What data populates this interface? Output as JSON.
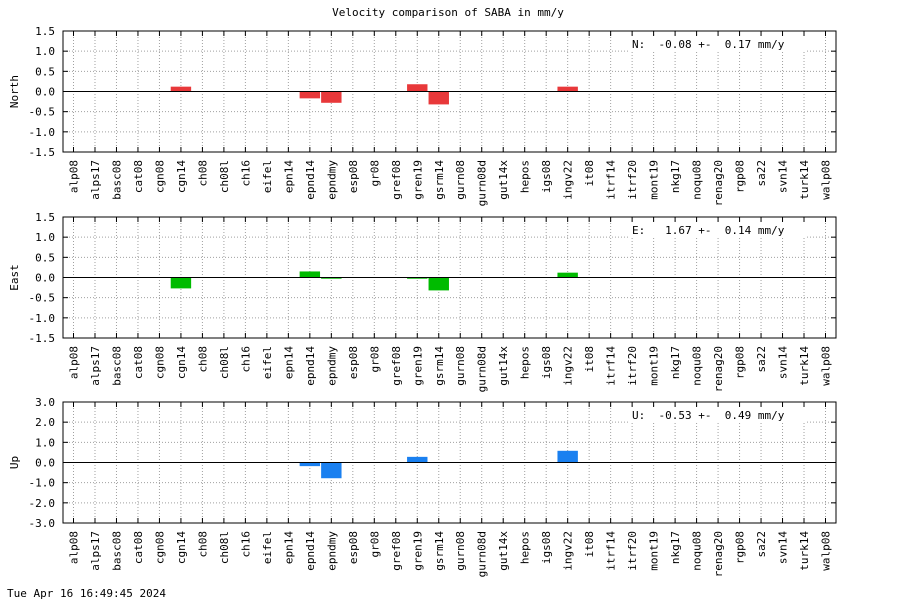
{
  "title": "Velocity comparison of SABA in mm/y",
  "footer": "Tue Apr 16 16:49:45 2024",
  "chart_data": [
    {
      "type": "bar",
      "ylabel": "North",
      "stat": "N:  -0.08 +-  0.17 mm/y",
      "color": "#e8383a",
      "ylim": [
        -1.5,
        1.5
      ],
      "yticks": [
        "1.5",
        "1.0",
        "0.5",
        "0.0",
        "-0.5",
        "-1.0",
        "-1.5"
      ],
      "grid": true,
      "categories": [
        "alp08",
        "alps17",
        "basc08",
        "cat08",
        "cgn08",
        "cgn14",
        "ch08",
        "ch08l",
        "ch16",
        "eifel",
        "epn14",
        "epnd14",
        "epndmy",
        "esp08",
        "gr08",
        "gref08",
        "gren19",
        "gsrm14",
        "gurn08",
        "gurn08d",
        "gut14x",
        "hepos",
        "igs08",
        "ingv22",
        "it08",
        "itrf14",
        "itrf20",
        "mont19",
        "nkg17",
        "noqu08",
        "renag20",
        "rgp08",
        "sa22",
        "svn14",
        "turk14",
        "walp08"
      ],
      "values": [
        0,
        0,
        0,
        0,
        0,
        0.12,
        0,
        0,
        0,
        0,
        0,
        -0.17,
        -0.28,
        0,
        0,
        0,
        0.18,
        -0.32,
        0,
        0,
        0,
        0,
        0,
        0.12,
        0,
        0,
        0,
        0,
        0,
        0,
        0,
        0,
        0,
        0,
        0,
        0
      ]
    },
    {
      "type": "bar",
      "ylabel": "East",
      "stat": "E:   1.67 +-  0.14 mm/y",
      "color": "#00bb00",
      "ylim": [
        -1.5,
        1.5
      ],
      "yticks": [
        "1.5",
        "1.0",
        "0.5",
        "0.0",
        "-0.5",
        "-1.0",
        "-1.5"
      ],
      "grid": true,
      "categories": [
        "alp08",
        "alps17",
        "basc08",
        "cat08",
        "cgn08",
        "cgn14",
        "ch08",
        "ch08l",
        "ch16",
        "eifel",
        "epn14",
        "epnd14",
        "epndmy",
        "esp08",
        "gr08",
        "gref08",
        "gren19",
        "gsrm14",
        "gurn08",
        "gurn08d",
        "gut14x",
        "hepos",
        "igs08",
        "ingv22",
        "it08",
        "itrf14",
        "itrf20",
        "mont19",
        "nkg17",
        "noqu08",
        "renag20",
        "rgp08",
        "sa22",
        "svn14",
        "turk14",
        "walp08"
      ],
      "values": [
        0,
        0,
        0,
        0,
        0,
        -0.27,
        0,
        0,
        0,
        0,
        0,
        0.15,
        -0.03,
        0,
        0,
        0,
        -0.03,
        -0.32,
        0,
        0,
        0,
        0,
        0,
        0.12,
        0,
        0,
        0,
        0,
        0,
        0,
        0,
        0,
        0,
        0,
        0,
        0
      ]
    },
    {
      "type": "bar",
      "ylabel": "Up",
      "stat": "U:  -0.53 +-  0.49 mm/y",
      "color": "#1a80f0",
      "ylim": [
        -3.0,
        3.0
      ],
      "yticks": [
        "3.0",
        "2.0",
        "1.0",
        "0.0",
        "-1.0",
        "-2.0",
        "-3.0"
      ],
      "grid": true,
      "categories": [
        "alp08",
        "alps17",
        "basc08",
        "cat08",
        "cgn08",
        "cgn14",
        "ch08",
        "ch08l",
        "ch16",
        "eifel",
        "epn14",
        "epnd14",
        "epndmy",
        "esp08",
        "gr08",
        "gref08",
        "gren19",
        "gsrm14",
        "gurn08",
        "gurn08d",
        "gut14x",
        "hepos",
        "igs08",
        "ingv22",
        "it08",
        "itrf14",
        "itrf20",
        "mont19",
        "nkg17",
        "noqu08",
        "renag20",
        "rgp08",
        "sa22",
        "svn14",
        "turk14",
        "walp08"
      ],
      "values": [
        0,
        0,
        0,
        0,
        0,
        0,
        0,
        0,
        0,
        0,
        0,
        -0.18,
        -0.78,
        0,
        0,
        0,
        0.28,
        0,
        0,
        0,
        0,
        0,
        0,
        0.58,
        0,
        0,
        0,
        0,
        0,
        0,
        0,
        0,
        0,
        0,
        0,
        0
      ]
    }
  ]
}
